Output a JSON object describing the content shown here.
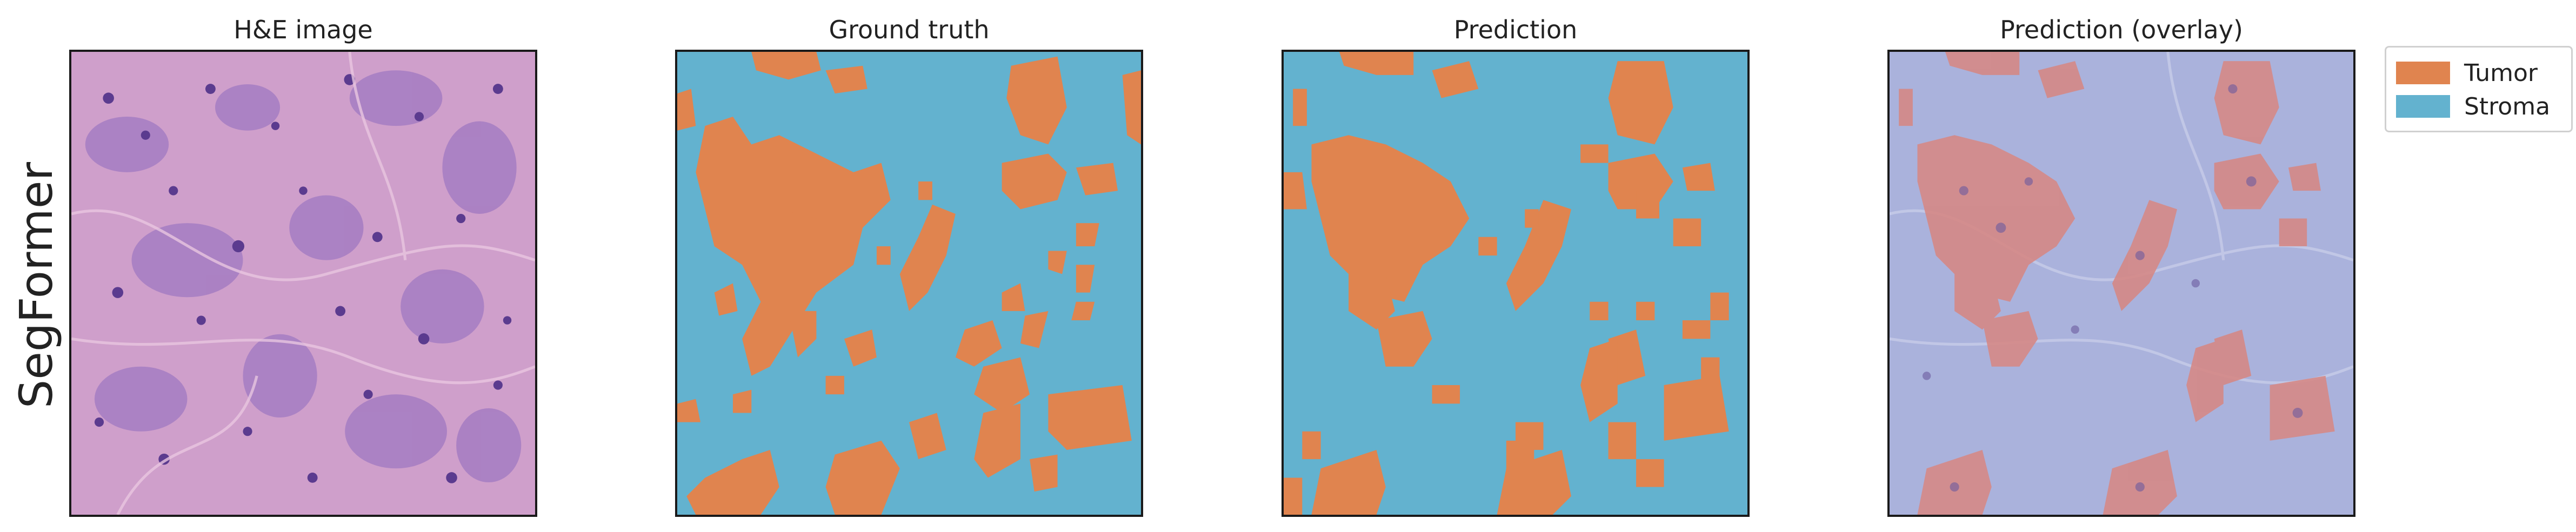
{
  "row_label": "SegFormer",
  "panels": [
    {
      "title": "H&E image"
    },
    {
      "title": "Ground truth"
    },
    {
      "title": "Prediction"
    },
    {
      "title": "Prediction (overlay)"
    }
  ],
  "legend": {
    "items": [
      {
        "label": "Tumor",
        "color": "#e0844f"
      },
      {
        "label": "Stroma",
        "color": "#63b2cf"
      }
    ]
  },
  "colors": {
    "tumor": "#e0844f",
    "stroma": "#63b2cf",
    "he_background": "#cf9fcb",
    "overlay_background": "#aab2dc",
    "overlay_tumor": "#d58886"
  }
}
